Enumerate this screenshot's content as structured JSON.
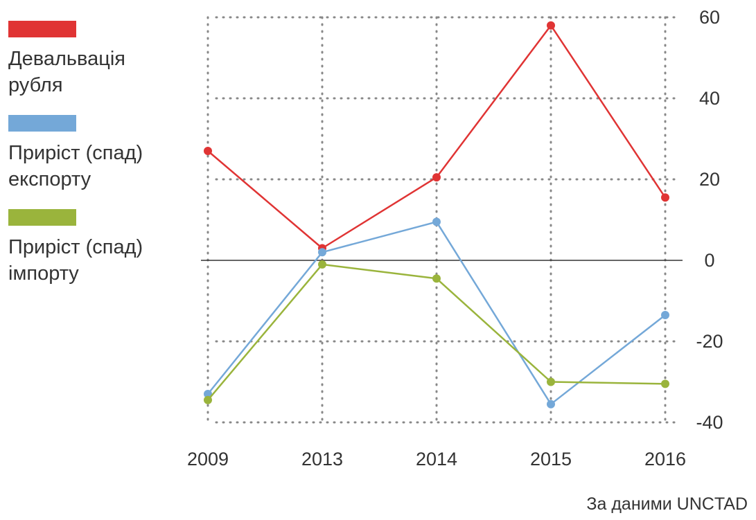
{
  "chart_data": {
    "type": "line",
    "categories": [
      "2009",
      "2013",
      "2014",
      "2015",
      "2016"
    ],
    "series": [
      {
        "name": "Девальвація рубля",
        "color": "#e03434",
        "values": [
          27,
          3,
          20.5,
          58,
          15.5
        ]
      },
      {
        "name": "Приріст (спад) експорту",
        "color": "#74a8d8",
        "values": [
          -33,
          2,
          9.5,
          -35.5,
          -13.5
        ]
      },
      {
        "name": "Приріст (спад) імпорту",
        "color": "#9ab43c",
        "values": [
          -34.5,
          -1,
          -4.5,
          -30,
          -30.5
        ]
      }
    ],
    "ylim": [
      -40,
      60
    ],
    "yticks": [
      "60",
      "40",
      "20",
      "0",
      "-20",
      "-40"
    ],
    "grid": true,
    "y_axis_position": "right",
    "legend_position": "left"
  },
  "legend": {
    "items": [
      {
        "label": "Девальвація рубля",
        "color": "#e03434"
      },
      {
        "label": "Приріст (спад) експорту",
        "color": "#74a8d8"
      },
      {
        "label": "Приріст (спад) імпорту",
        "color": "#9ab43c"
      }
    ]
  },
  "source": "За даними UNCTAD"
}
